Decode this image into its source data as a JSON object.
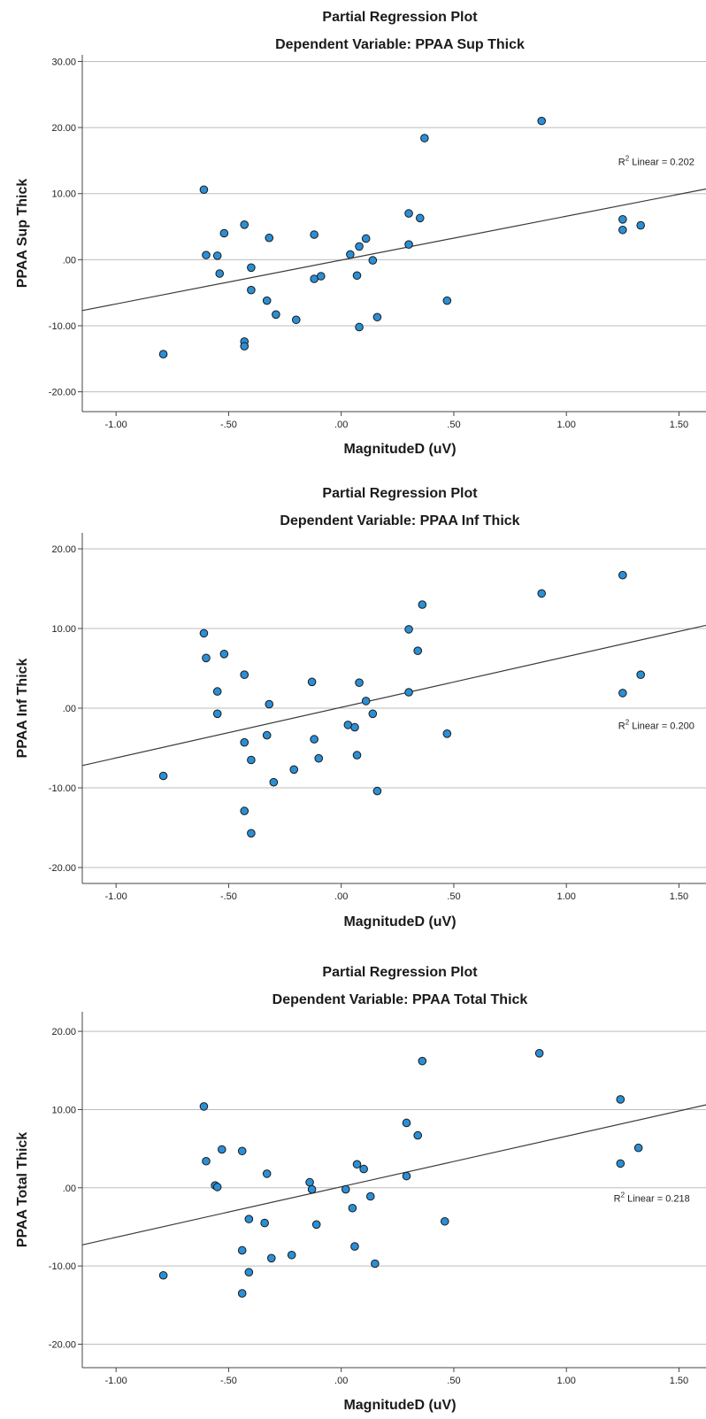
{
  "chart_data": [
    {
      "type": "scatter",
      "title": "Partial Regression Plot",
      "subtitle": "Dependent Variable: PPAA Sup Thick",
      "xlabel": "MagnitudeD (uV)",
      "ylabel": "PPAA Sup Thick",
      "xlim": [
        -1.15,
        1.62
      ],
      "ylim": [
        -23,
        31
      ],
      "xticks": [
        -1.0,
        -0.5,
        0.0,
        0.5,
        1.0,
        1.5
      ],
      "xtick_labels": [
        "-1.00",
        "-.50",
        ".00",
        ".50",
        "1.00",
        "1.50"
      ],
      "yticks": [
        -20,
        -10,
        0,
        10,
        20,
        30
      ],
      "ytick_labels": [
        "-20.00",
        "-10.00",
        ".00",
        "10.00",
        "20.00",
        "30.00"
      ],
      "grid": "horizontal",
      "fit_line": {
        "x": [
          -1.15,
          1.62
        ],
        "y": [
          -7.7,
          10.7
        ]
      },
      "r2_label": "Linear = 0.202",
      "r2_anchor": [
        1.23,
        14.3
      ],
      "point_color": "#2b8fd6",
      "points": [
        [
          -0.79,
          -14.3
        ],
        [
          -0.61,
          10.6
        ],
        [
          -0.6,
          0.7
        ],
        [
          -0.55,
          0.6
        ],
        [
          -0.54,
          -2.1
        ],
        [
          -0.52,
          4.0
        ],
        [
          -0.43,
          5.3
        ],
        [
          -0.43,
          -12.4
        ],
        [
          -0.43,
          -13.1
        ],
        [
          -0.4,
          -1.2
        ],
        [
          -0.4,
          -4.6
        ],
        [
          -0.33,
          -6.2
        ],
        [
          -0.32,
          3.3
        ],
        [
          -0.29,
          -8.3
        ],
        [
          -0.2,
          -9.1
        ],
        [
          -0.12,
          3.8
        ],
        [
          -0.12,
          -2.9
        ],
        [
          -0.09,
          -2.5
        ],
        [
          0.04,
          0.8
        ],
        [
          0.07,
          -2.4
        ],
        [
          0.08,
          2.0
        ],
        [
          0.08,
          -10.2
        ],
        [
          0.11,
          3.2
        ],
        [
          0.14,
          -0.1
        ],
        [
          0.16,
          -8.7
        ],
        [
          0.3,
          7.0
        ],
        [
          0.3,
          2.3
        ],
        [
          0.35,
          6.3
        ],
        [
          0.37,
          18.4
        ],
        [
          0.47,
          -6.2
        ],
        [
          0.89,
          21.0
        ],
        [
          1.25,
          6.1
        ],
        [
          1.25,
          4.5
        ],
        [
          1.33,
          5.2
        ]
      ]
    },
    {
      "type": "scatter",
      "title": "Partial Regression Plot",
      "subtitle": "Dependent Variable: PPAA Inf Thick",
      "xlabel": "MagnitudeD (uV)",
      "ylabel": "PPAA Inf Thick",
      "xlim": [
        -1.15,
        1.62
      ],
      "ylim": [
        -22,
        22
      ],
      "xticks": [
        -1.0,
        -0.5,
        0.0,
        0.5,
        1.0,
        1.5
      ],
      "xtick_labels": [
        "-1.00",
        "-.50",
        ".00",
        ".50",
        "1.00",
        "1.50"
      ],
      "yticks": [
        -20,
        -10,
        0,
        10,
        20
      ],
      "ytick_labels": [
        "-20.00",
        "-10.00",
        ".00",
        "10.00",
        "20.00"
      ],
      "grid": "horizontal",
      "fit_line": {
        "x": [
          -1.15,
          1.62
        ],
        "y": [
          -7.2,
          10.4
        ]
      },
      "r2_label": "Linear = 0.200",
      "r2_anchor": [
        1.23,
        -2.6
      ],
      "point_color": "#2b8fd6",
      "points": [
        [
          -0.79,
          -8.5
        ],
        [
          -0.61,
          9.4
        ],
        [
          -0.6,
          6.3
        ],
        [
          -0.55,
          2.1
        ],
        [
          -0.55,
          -0.7
        ],
        [
          -0.52,
          6.8
        ],
        [
          -0.43,
          4.2
        ],
        [
          -0.43,
          -4.3
        ],
        [
          -0.43,
          -12.9
        ],
        [
          -0.4,
          -6.5
        ],
        [
          -0.4,
          -15.7
        ],
        [
          -0.33,
          -3.4
        ],
        [
          -0.32,
          0.5
        ],
        [
          -0.3,
          -9.3
        ],
        [
          -0.21,
          -7.7
        ],
        [
          -0.13,
          3.3
        ],
        [
          -0.12,
          -3.9
        ],
        [
          -0.1,
          -6.3
        ],
        [
          0.03,
          -2.1
        ],
        [
          0.06,
          -2.4
        ],
        [
          0.07,
          -5.9
        ],
        [
          0.08,
          3.2
        ],
        [
          0.11,
          0.9
        ],
        [
          0.14,
          -0.7
        ],
        [
          0.16,
          -10.4
        ],
        [
          0.3,
          9.9
        ],
        [
          0.3,
          2.0
        ],
        [
          0.34,
          7.2
        ],
        [
          0.36,
          13.0
        ],
        [
          0.47,
          -3.2
        ],
        [
          0.89,
          14.4
        ],
        [
          1.25,
          16.7
        ],
        [
          1.25,
          1.9
        ],
        [
          1.33,
          4.2
        ]
      ]
    },
    {
      "type": "scatter",
      "title": "Partial Regression Plot",
      "subtitle": "Dependent Variable: PPAA Total Thick",
      "xlabel": "MagnitudeD (uV)",
      "ylabel": "PPAA Total Thick",
      "xlim": [
        -1.15,
        1.62
      ],
      "ylim": [
        -23,
        22.5
      ],
      "xticks": [
        -1.0,
        -0.5,
        0.0,
        0.5,
        1.0,
        1.5
      ],
      "xtick_labels": [
        "-1.00",
        "-.50",
        ".00",
        ".50",
        "1.00",
        "1.50"
      ],
      "yticks": [
        -20,
        -10,
        0,
        10,
        20
      ],
      "ytick_labels": [
        "-20.00",
        "-10.00",
        ".00",
        "10.00",
        "20.00"
      ],
      "grid": "horizontal",
      "fit_line": {
        "x": [
          -1.15,
          1.62
        ],
        "y": [
          -7.3,
          10.6
        ]
      },
      "r2_label": "Linear = 0.218",
      "r2_anchor": [
        1.21,
        -1.8
      ],
      "point_color": "#2b8fd6",
      "points": [
        [
          -0.79,
          -11.2
        ],
        [
          -0.61,
          10.4
        ],
        [
          -0.6,
          3.4
        ],
        [
          -0.56,
          0.3
        ],
        [
          -0.55,
          0.1
        ],
        [
          -0.53,
          4.9
        ],
        [
          -0.44,
          4.7
        ],
        [
          -0.44,
          -8.0
        ],
        [
          -0.44,
          -13.5
        ],
        [
          -0.41,
          -4.0
        ],
        [
          -0.41,
          -10.8
        ],
        [
          -0.34,
          -4.5
        ],
        [
          -0.33,
          1.8
        ],
        [
          -0.31,
          -9.0
        ],
        [
          -0.22,
          -8.6
        ],
        [
          -0.14,
          0.7
        ],
        [
          -0.13,
          -0.2
        ],
        [
          -0.11,
          -4.7
        ],
        [
          0.02,
          -0.2
        ],
        [
          0.05,
          -2.6
        ],
        [
          0.06,
          -7.5
        ],
        [
          0.07,
          3.0
        ],
        [
          0.1,
          2.4
        ],
        [
          0.13,
          -1.1
        ],
        [
          0.15,
          -9.7
        ],
        [
          0.29,
          8.3
        ],
        [
          0.29,
          1.5
        ],
        [
          0.34,
          6.7
        ],
        [
          0.36,
          16.2
        ],
        [
          0.46,
          -4.3
        ],
        [
          0.88,
          17.2
        ],
        [
          1.24,
          11.3
        ],
        [
          1.24,
          3.1
        ],
        [
          1.32,
          5.1
        ]
      ]
    }
  ]
}
